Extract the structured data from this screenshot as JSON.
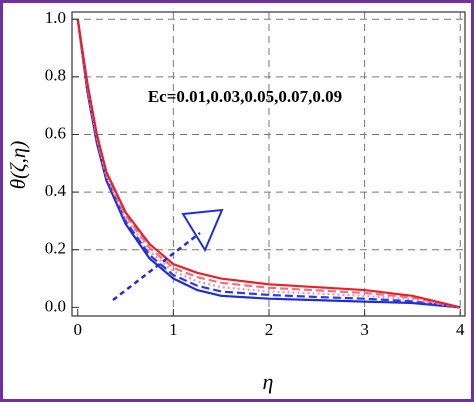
{
  "chart_data": {
    "type": "line",
    "x_label": "η",
    "y_label": "θ(ζ,η)",
    "annotation": "Ec=0.01,0.03,0.05,0.07,0.09",
    "x": [
      0,
      0.1,
      0.2,
      0.3,
      0.5,
      0.75,
      1,
      1.25,
      1.5,
      2,
      2.5,
      3,
      3.5,
      4
    ],
    "series": [
      {
        "color": "#1f2fd0",
        "dash": "solid",
        "values": [
          1,
          0.75,
          0.57,
          0.44,
          0.29,
          0.17,
          0.1,
          0.06,
          0.04,
          0.03,
          0.025,
          0.02,
          0.015,
          0
        ]
      },
      {
        "color": "#2a3ae8",
        "dash": "dashed",
        "values": [
          1,
          0.757,
          0.577,
          0.447,
          0.3,
          0.182,
          0.112,
          0.075,
          0.055,
          0.043,
          0.036,
          0.03,
          0.021,
          0
        ]
      },
      {
        "color": "#e89aa8",
        "dash": "dotted",
        "values": [
          1,
          0.765,
          0.585,
          0.455,
          0.31,
          0.195,
          0.125,
          0.09,
          0.07,
          0.055,
          0.048,
          0.04,
          0.028,
          0
        ]
      },
      {
        "color": "#f07080",
        "dash": "dashed",
        "values": [
          1,
          0.772,
          0.592,
          0.462,
          0.32,
          0.207,
          0.137,
          0.105,
          0.085,
          0.068,
          0.059,
          0.05,
          0.034,
          0
        ]
      },
      {
        "color": "#e8202a",
        "dash": "solid",
        "values": [
          1,
          0.78,
          0.6,
          0.47,
          0.33,
          0.22,
          0.15,
          0.12,
          0.1,
          0.08,
          0.07,
          0.06,
          0.04,
          0
        ]
      }
    ],
    "xlim": [
      -0.06,
      4.05
    ],
    "ylim": [
      -0.03,
      1.025
    ],
    "xticks": [
      0,
      1,
      2,
      3,
      4
    ],
    "yticks": [
      {
        "value": 0,
        "label": "0.0"
      },
      0.2,
      0.4,
      0.6,
      0.8,
      {
        "value": 1,
        "label": "1.0"
      }
    ],
    "grid": true
  }
}
